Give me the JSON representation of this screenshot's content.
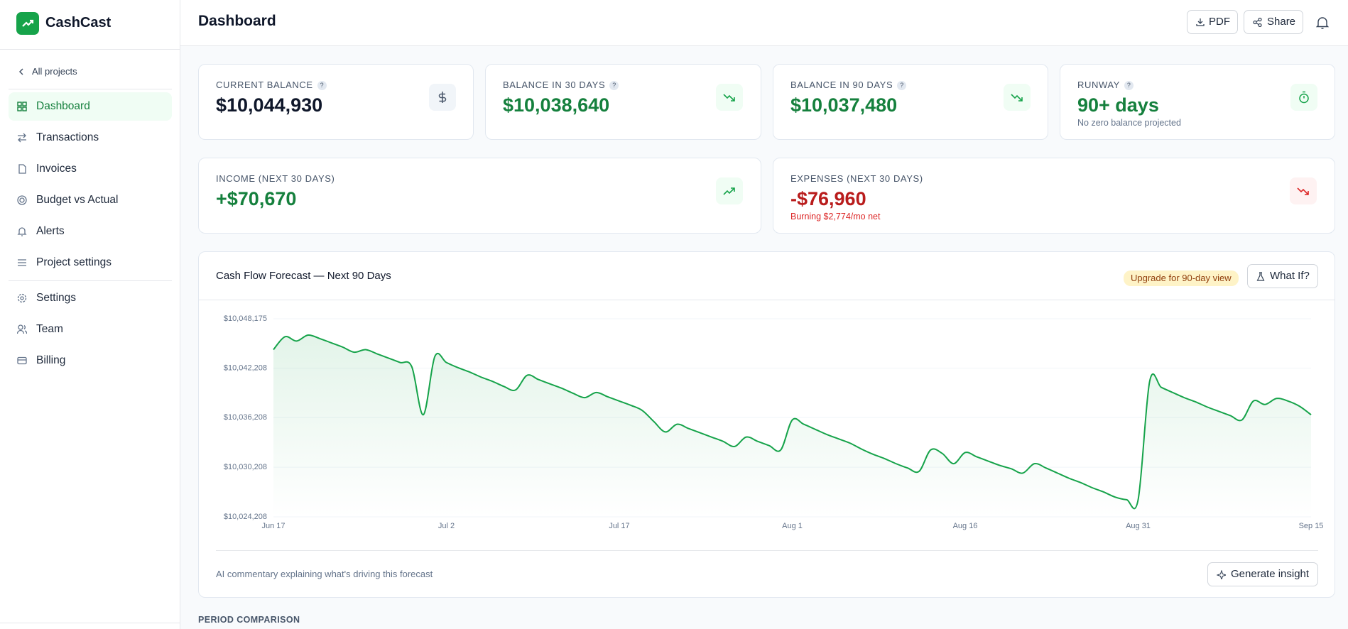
{
  "sidebar": {
    "brand": "CashCast",
    "back": "All projects",
    "nav": [
      "Dashboard",
      "Transactions",
      "Invoices",
      "Budget vs Actual",
      "Alerts",
      "Project settings"
    ],
    "nav2": [
      "Settings",
      "Team",
      "Billing"
    ]
  },
  "header": {
    "title": "Dashboard",
    "buttons": [
      "PDF",
      "Share"
    ]
  },
  "help_icon": "?",
  "kpis": [
    {
      "label": "CURRENT BALANCE",
      "value": "$10,044,930"
    },
    {
      "label": "BALANCE IN 30 DAYS",
      "value": "$10,038,640"
    },
    {
      "label": "BALANCE IN 90 DAYS",
      "value": "$10,037,480"
    },
    {
      "label": "RUNWAY",
      "value": "90+ days",
      "note": "No zero balance projected"
    },
    {
      "label": "INCOME (NEXT 30 DAYS)",
      "value": "+$70,670"
    },
    {
      "label": "EXPENSES (NEXT 30 DAYS)",
      "value": "-$76,960",
      "note": "Burning $2,774/mo net"
    }
  ],
  "chart_panel": {
    "badge": "Upgrade for 90-day view",
    "button": "What If?",
    "commentary": "AI commentary explaining what's driving this forecast",
    "insight_button": "Generate insight"
  },
  "chart_data": {
    "type": "line",
    "title": "Cash Flow Forecast — Next 90 Days",
    "color": "#16a34a",
    "grid": true,
    "categories": [
      "Jun 17",
      null,
      null,
      null,
      null,
      null,
      null,
      null,
      null,
      null,
      null,
      null,
      null,
      null,
      null,
      "Jul 2",
      null,
      null,
      null,
      null,
      null,
      null,
      null,
      null,
      null,
      null,
      null,
      null,
      null,
      null,
      "Jul 17",
      null,
      null,
      null,
      null,
      null,
      null,
      null,
      null,
      null,
      null,
      null,
      null,
      null,
      null,
      "Aug 1",
      null,
      null,
      null,
      null,
      null,
      null,
      null,
      null,
      null,
      null,
      null,
      null,
      null,
      null,
      "Aug 16",
      null,
      null,
      null,
      null,
      null,
      null,
      null,
      null,
      null,
      null,
      null,
      null,
      null,
      null,
      "Aug 31",
      null,
      null,
      null,
      null,
      null,
      null,
      null,
      null,
      null,
      null,
      null,
      null,
      null,
      null,
      "Sep 15"
    ],
    "values": [
      10044440,
      10046000,
      10045480,
      10046200,
      10045790,
      10045270,
      10044750,
      10044130,
      10044440,
      10043920,
      10043400,
      10042880,
      10042370,
      10036560,
      10043610,
      10042880,
      10042260,
      10041740,
      10041120,
      10040600,
      10039980,
      10039560,
      10041330,
      10040810,
      10040290,
      10039770,
      10039150,
      10038630,
      10039250,
      10038730,
      10038220,
      10037700,
      10037070,
      10035730,
      10034480,
      10035410,
      10034900,
      10034380,
      10033860,
      10033340,
      10032720,
      10033860,
      10033340,
      10032820,
      10032300,
      10035930,
      10035410,
      10034790,
      10034170,
      10033650,
      10033130,
      10032410,
      10031780,
      10031260,
      10030640,
      10030120,
      10029710,
      10032300,
      10031890,
      10030640,
      10031990,
      10031470,
      10030950,
      10030430,
      10030020,
      10029500,
      10030640,
      10030120,
      10029500,
      10028880,
      10028360,
      10027740,
      10027220,
      10026600,
      10026280,
      10026280,
      10040600,
      10039880,
      10039250,
      10038630,
      10038110,
      10037490,
      10036970,
      10036450,
      10035930,
      10038220,
      10037800,
      10038530,
      10038220,
      10037590,
      10036560
    ],
    "ylim": [
      10024208,
      10048175
    ],
    "yticks": [
      {
        "value": 10024208,
        "label": "$10,024,208"
      },
      {
        "value": 10030208,
        "label": "$10,030,208"
      },
      {
        "value": 10036208,
        "label": "$10,036,208"
      },
      {
        "value": 10042208,
        "label": "$10,042,208"
      },
      {
        "value": 10048175,
        "label": "$10,048,175"
      }
    ]
  },
  "section": "PERIOD COMPARISON"
}
